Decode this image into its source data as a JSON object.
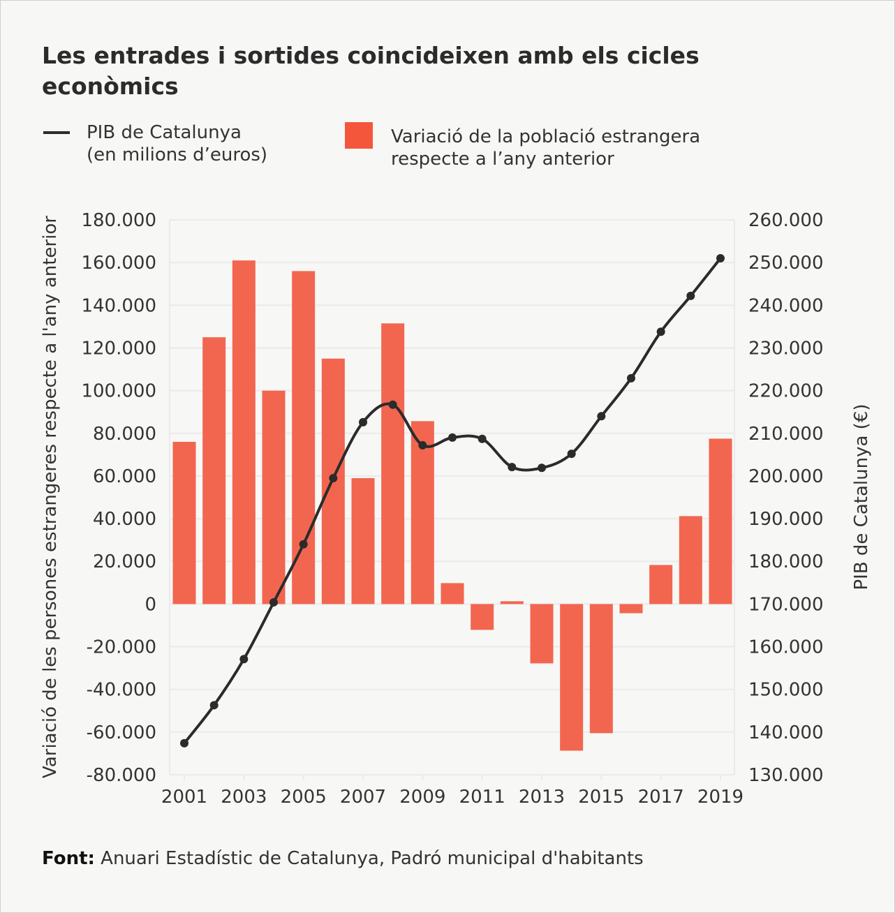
{
  "title": "Les entrades i sortides coincideixen amb els cicles econòmics",
  "legend": {
    "line_label_1": "PIB de Catalunya",
    "line_label_2": "(en milions d’euros)",
    "bar_label_1": "Variació de la població estrangera",
    "bar_label_2": "respecte a l’any anterior"
  },
  "source": {
    "label": "Font:",
    "text": "Anuari Estadístic de Catalunya, Padró municipal d'habitants"
  },
  "colors": {
    "bar": "#f26650",
    "legend_swatch": "#f4563b",
    "line": "#2b2b2b",
    "grid": "#eaeaea"
  },
  "chart_data": {
    "type": "bar+line",
    "x": [
      2001,
      2002,
      2003,
      2004,
      2005,
      2006,
      2007,
      2008,
      2009,
      2010,
      2011,
      2012,
      2013,
      2014,
      2015,
      2016,
      2017,
      2018,
      2019
    ],
    "x_tick_labels": [
      "2001",
      "2003",
      "2005",
      "2007",
      "2009",
      "2011",
      "2013",
      "2015",
      "2017",
      "2019"
    ],
    "ylabel_left": "Variació de les persones estrangeres respecte a l'any anterior",
    "ylabel_right": "PIB de Catalunya (€)",
    "ylim_left": [
      -80000,
      180000
    ],
    "ylim_right": [
      130000,
      260000
    ],
    "y_tick_labels_left": [
      "180.000",
      "160.000",
      "140.000",
      "120.000",
      "100.000",
      "80.000",
      "60.000",
      "40.000",
      "20.000",
      "0",
      "-20.000",
      "-40.000",
      "-60.000",
      "-80.000"
    ],
    "y_tick_labels_right": [
      "260.000",
      "250.000",
      "240.000",
      "230.000",
      "220.000",
      "210.000",
      "200.000",
      "190.000",
      "180.000",
      "170.000",
      "160.000",
      "150.000",
      "140.000",
      "130.000"
    ],
    "grid": true,
    "legend_position": "top",
    "series": [
      {
        "name": "Variació de la població estrangera respecte a l’any anterior",
        "type": "bar",
        "axis": "left",
        "values": [
          76000,
          125000,
          161000,
          100000,
          156000,
          115000,
          59000,
          131500,
          85700,
          9800,
          -12100,
          1300,
          -27800,
          -68700,
          -60500,
          -4300,
          18300,
          41200,
          77500
        ]
      },
      {
        "name": "PIB de Catalunya (en milions d’euros)",
        "type": "line",
        "axis": "right",
        "values": [
          137400,
          146300,
          157100,
          170400,
          184000,
          199500,
          212600,
          216700,
          207200,
          209000,
          208700,
          202100,
          201900,
          205200,
          214000,
          222900,
          233800,
          242200,
          251000
        ]
      }
    ]
  }
}
